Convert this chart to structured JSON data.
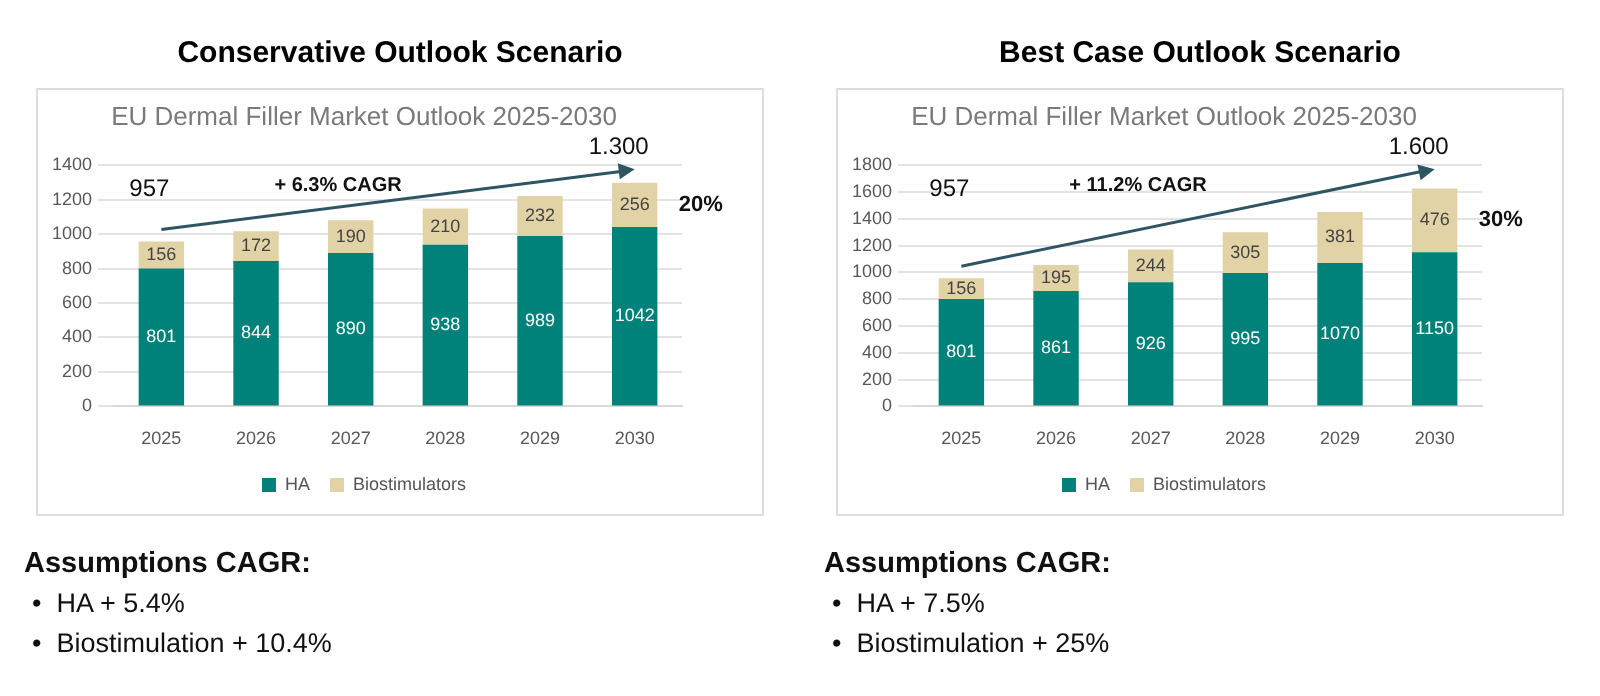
{
  "chart_data": [
    {
      "type": "bar",
      "title": "Conservative Outlook Scenario",
      "subtitle": "EU Dermal Filler Market Outlook 2025-2030",
      "categories": [
        "2025",
        "2026",
        "2027",
        "2028",
        "2029",
        "2030"
      ],
      "stacked": true,
      "series": [
        {
          "name": "HA",
          "color": "#00827a",
          "values": [
            801,
            844,
            890,
            938,
            989,
            1042
          ]
        },
        {
          "name": "Biostimulators",
          "color": "#e2d3a6",
          "values": [
            156,
            172,
            190,
            210,
            232,
            256
          ]
        }
      ],
      "ylim": [
        0,
        1400
      ],
      "yticks": [
        0,
        200,
        400,
        600,
        800,
        1000,
        1200,
        1400
      ],
      "grid": "y",
      "legend": "bottom",
      "data_labels": true,
      "annotations": [
        "957",
        "+ 6.3% CAGR",
        "1.300",
        "20%",
        "Assumptions CAGR:",
        "•  HA + 5.4%",
        "•  Biostimulation + 10.4%"
      ]
    },
    {
      "type": "bar",
      "title": "Best Case Outlook Scenario",
      "subtitle": "EU Dermal Filler Market Outlook 2025-2030",
      "categories": [
        "2025",
        "2026",
        "2027",
        "2028",
        "2029",
        "2030"
      ],
      "stacked": true,
      "series": [
        {
          "name": "HA",
          "color": "#00827a",
          "values": [
            801,
            861,
            926,
            995,
            1070,
            1150
          ]
        },
        {
          "name": "Biostimulators",
          "color": "#e2d3a6",
          "values": [
            156,
            195,
            244,
            305,
            381,
            476
          ]
        }
      ],
      "ylim": [
        0,
        1800
      ],
      "yticks": [
        0,
        200,
        400,
        600,
        800,
        1000,
        1200,
        1400,
        1600,
        1800
      ],
      "grid": "y",
      "legend": "bottom",
      "data_labels": true,
      "annotations": [
        "957",
        "+ 11.2% CAGR",
        "1.600",
        "30%",
        "Assumptions CAGR:",
        "•  HA + 7.5%",
        "•  Biostimulation + 25%"
      ]
    }
  ]
}
